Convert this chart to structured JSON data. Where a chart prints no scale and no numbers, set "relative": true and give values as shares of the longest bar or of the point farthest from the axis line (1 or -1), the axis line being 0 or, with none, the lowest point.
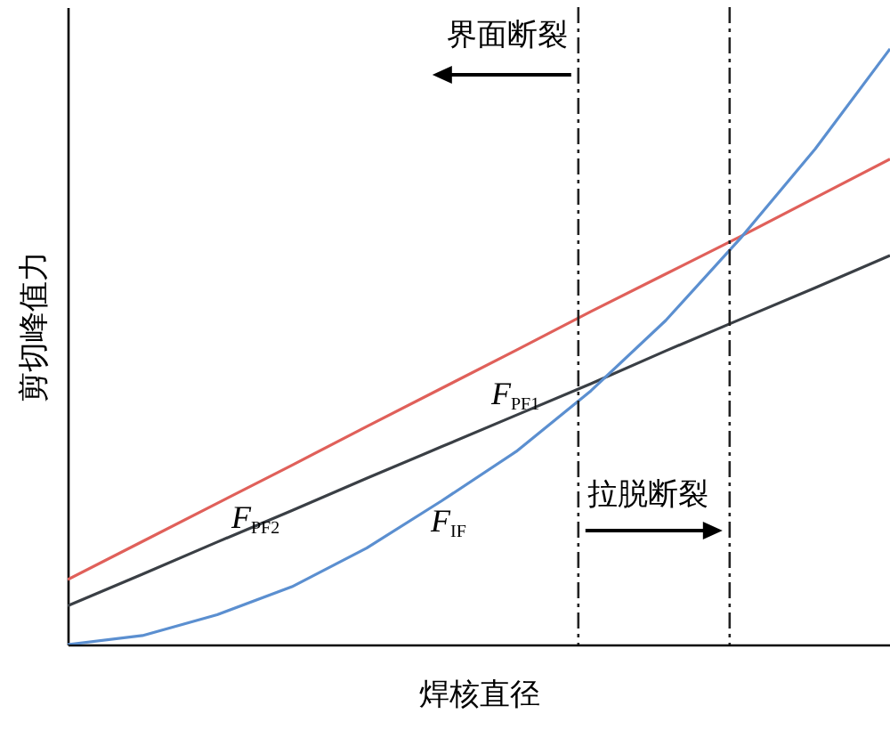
{
  "chart_data": {
    "type": "line",
    "relative": true,
    "xlabel": "焊核直径",
    "ylabel": "剪切峰值力",
    "categories": [
      null,
      null,
      null,
      null,
      null,
      null,
      null,
      null,
      null,
      null,
      null,
      null
    ],
    "marker": "none",
    "line_style": "solid",
    "series": [
      {
        "name": "F$_{PF2}$",
        "color": "#e0605a",
        "values": [
          0.109,
          0.173,
          0.237,
          0.301,
          0.366,
          0.43,
          0.494,
          0.559,
          0.622,
          0.685,
          0.75,
          0.815
        ]
      },
      {
        "name": "F$_{PF1}$",
        "color": "#3a3f45",
        "values": [
          0.065,
          0.118,
          0.172,
          0.225,
          0.279,
          0.332,
          0.385,
          0.438,
          0.493,
          0.546,
          0.599,
          0.653
        ]
      },
      {
        "name": "F$_{IF}$",
        "color": "#5b8fd0",
        "values": [
          0,
          0.015,
          0.05,
          0.097,
          0.162,
          0.241,
          0.324,
          0.426,
          0.544,
          0.682,
          0.832,
          1
        ]
      }
    ],
    "annotations": [
      "界面断裂",
      "拉脱断裂"
    ]
  }
}
